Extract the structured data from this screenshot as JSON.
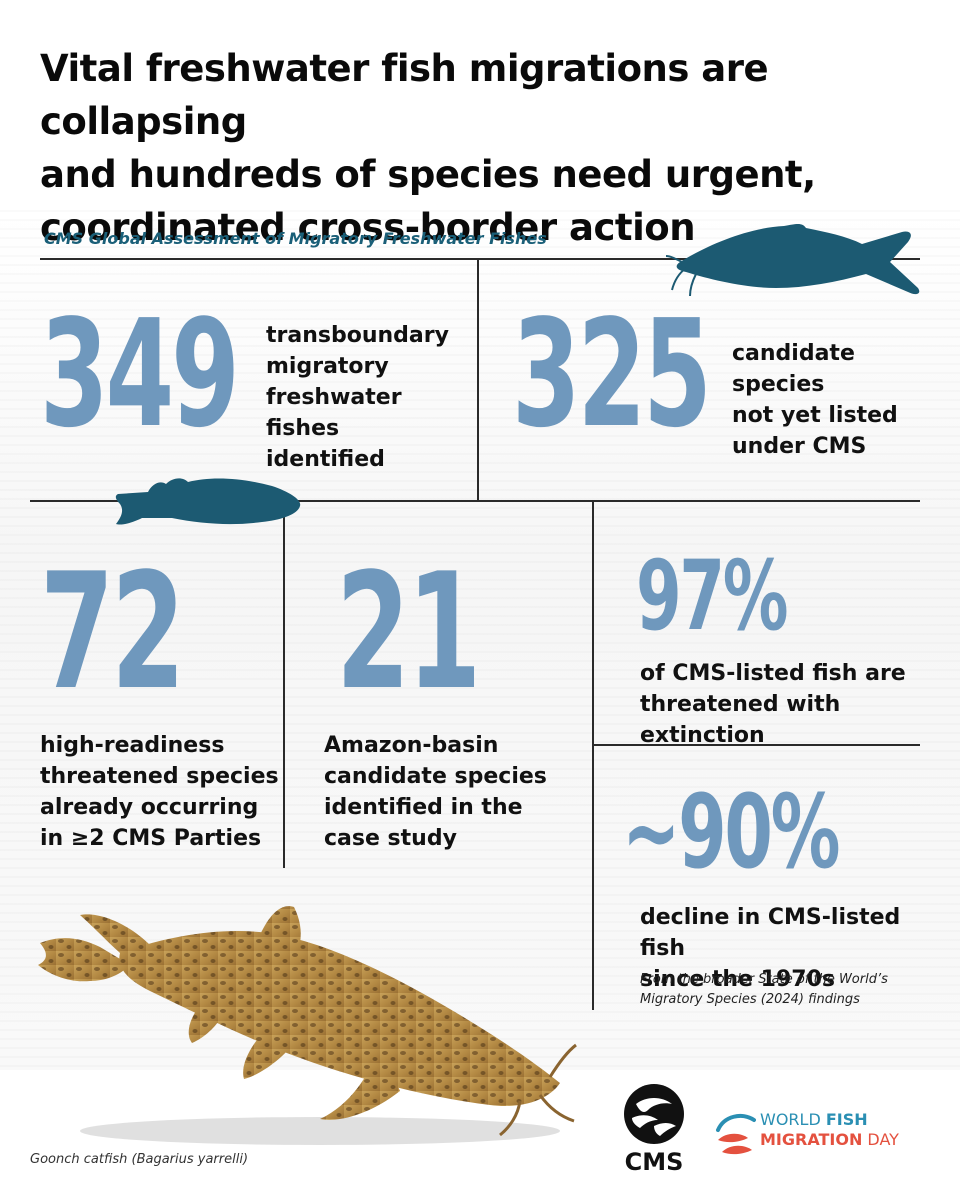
{
  "headline": {
    "line1": "Vital freshwater fish migrations are collapsing",
    "line2": "and hundreds of species need urgent,",
    "line3": "coordinated cross-border action"
  },
  "subtitle": "CMS Global Assessment of Migratory Freshwater Fishes",
  "stats": {
    "s349": {
      "number": "349",
      "line1": "transboundary",
      "line2": "migratory",
      "line3": "freshwater fishes",
      "line4": "identified"
    },
    "s325": {
      "number": "325",
      "line1": "candidate species",
      "line2": "not yet listed",
      "line3": "under CMS"
    },
    "s72": {
      "number": "72",
      "line1": "high-readiness",
      "line2": "threatened species",
      "line3": "already occurring",
      "line4": "in ≥2 CMS Parties"
    },
    "s21": {
      "number": "21",
      "line1": "Amazon-basin",
      "line2": "candidate species",
      "line3": "identified in the",
      "line4": "case study"
    },
    "s97": {
      "number": "97%",
      "line1": "of CMS-listed fish are",
      "line2": "threatened with extinction"
    },
    "s90": {
      "number": "~90%",
      "line1": "decline in CMS-listed fish",
      "line2": "since the 1970s",
      "note1": "From the broader State of the World’s",
      "note2": "Migratory Species (2024) findings"
    }
  },
  "caption": "Goonch catfish (Bagarius yarrelli)",
  "logos": {
    "cms": "CMS",
    "wfmd_world": "WORLD",
    "wfmd_fish": "FISH",
    "wfmd_migration": "MIGRATION",
    "wfmd_day": "DAY"
  },
  "colors": {
    "number_blue": "#6f98bd",
    "accent_teal": "#1a5f78",
    "silhouette": "#1c5a72",
    "wfmd_blue": "#2a8fb3",
    "wfmd_red": "#e4513f"
  }
}
